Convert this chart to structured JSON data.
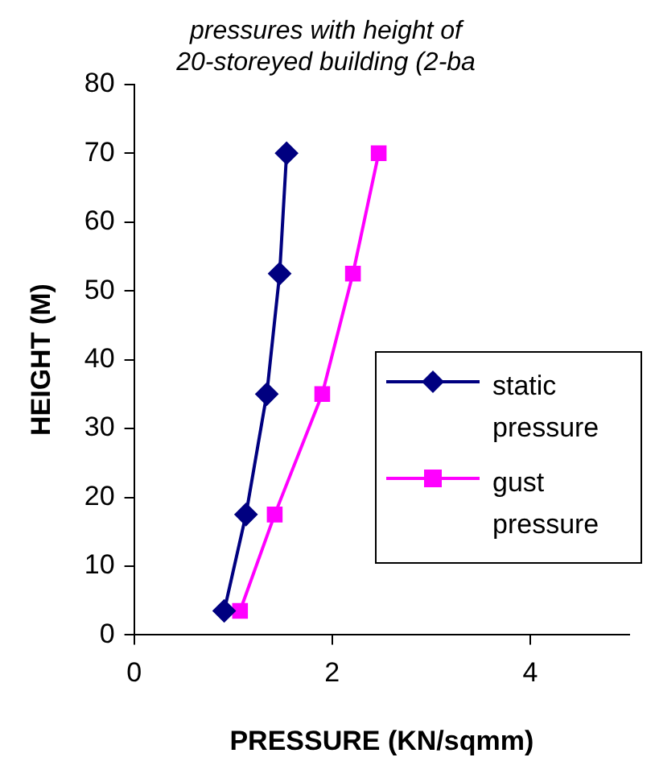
{
  "chart_data": {
    "type": "line",
    "title": "pressures with height of\n20-storeyed building (2-ba",
    "xlabel": "PRESSURE (KN/sqmm)",
    "ylabel": "HEIGHT (M)",
    "xlim": [
      0,
      5
    ],
    "xticks": [
      0,
      2,
      4
    ],
    "ylim": [
      0,
      80
    ],
    "yticks": [
      0,
      10,
      20,
      30,
      40,
      50,
      60,
      70,
      80
    ],
    "grid": false,
    "legend": "right",
    "series": [
      {
        "name": "static pressure",
        "color": "#000080",
        "marker": "diamond",
        "x": [
          0.91,
          1.13,
          1.34,
          1.47,
          1.54
        ],
        "values": [
          3.5,
          17.5,
          35,
          52.5,
          70
        ]
      },
      {
        "name": "gust pressure",
        "color": "#ff00ff",
        "marker": "square",
        "x": [
          1.07,
          1.42,
          1.9,
          2.21,
          2.47
        ],
        "values": [
          3.5,
          17.5,
          35,
          52.5,
          70
        ]
      }
    ]
  }
}
